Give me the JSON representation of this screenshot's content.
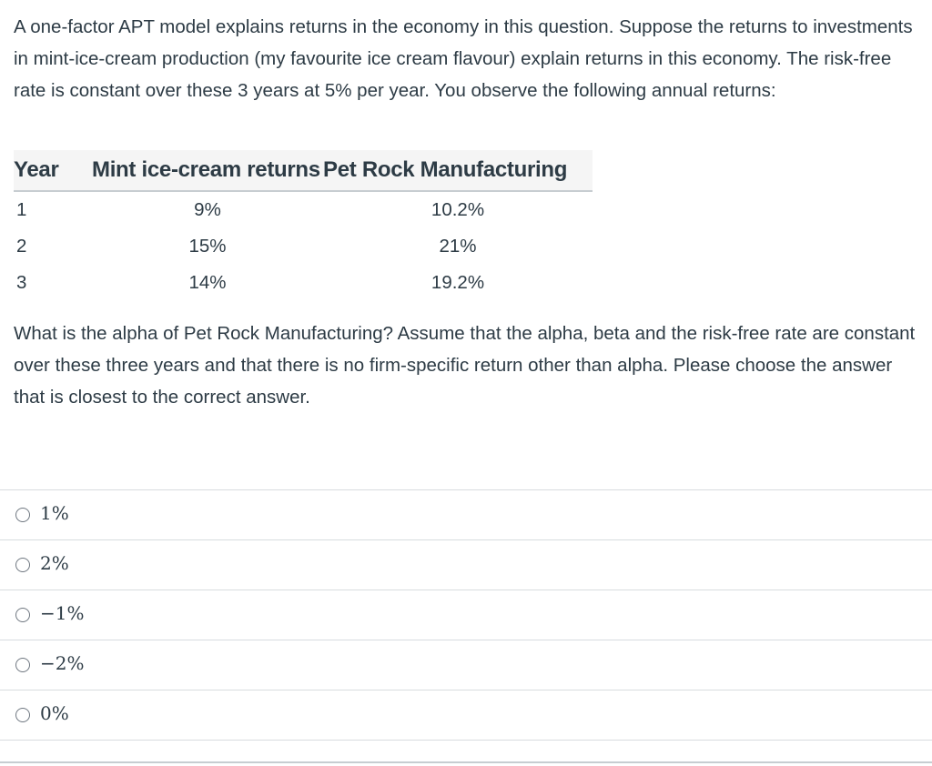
{
  "question": {
    "intro": "A one-factor APT model explains returns in the economy in this question. Suppose the returns to investments in mint-ice-cream production (my favourite ice cream flavour) explain returns in this economy. The risk-free rate is constant over these 3 years at 5% per year. You observe the following annual returns:",
    "prompt": "What is the alpha of Pet Rock Manufacturing? Assume that the alpha, beta and the risk-free rate are constant over these three years and that there is no firm-specific return other than alpha. Please choose the answer that is closest to the correct answer."
  },
  "table": {
    "headers": [
      "Year",
      "Mint ice-cream returns",
      "Pet Rock Manufacturing"
    ],
    "rows": [
      [
        "1",
        "9%",
        "10.2%"
      ],
      [
        "2",
        "15%",
        "21%"
      ],
      [
        "3",
        "14%",
        "19.2%"
      ]
    ]
  },
  "answers": [
    {
      "label": "1%"
    },
    {
      "label": "2%"
    },
    {
      "label": "−1%"
    },
    {
      "label": "−2%"
    },
    {
      "label": "0%"
    }
  ]
}
